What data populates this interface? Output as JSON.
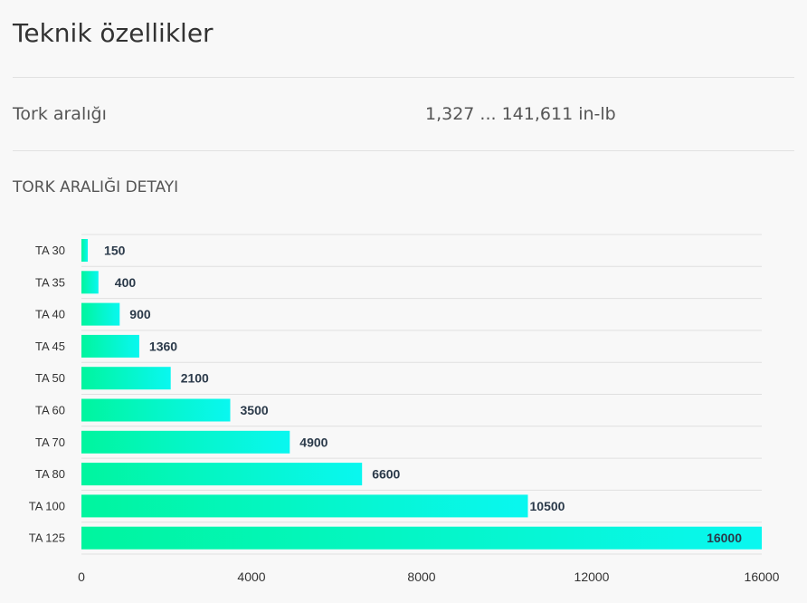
{
  "page": {
    "title": "Teknik özellikler"
  },
  "specs": {
    "torque_range_label": "Tork aralığı",
    "torque_range_value": "1,327 ... 141,611 in-lb"
  },
  "detail": {
    "title": "TORK ARALIĞI DETAYI"
  },
  "colors": {
    "bar_start": "#00f59e",
    "bar_end": "#09f7f0",
    "gridline": "#e0e0e0",
    "value_text": "#2b3a4a"
  },
  "chart_data": {
    "type": "bar",
    "orientation": "horizontal",
    "categories": [
      "TA 30",
      "TA 35",
      "TA 40",
      "TA 45",
      "TA 50",
      "TA 60",
      "TA 70",
      "TA 80",
      "TA 100",
      "TA 125"
    ],
    "values": [
      150,
      400,
      900,
      1360,
      2100,
      3500,
      4900,
      6600,
      10500,
      16000
    ],
    "value_labels": [
      "150",
      "400",
      "900",
      "1360",
      "2100",
      "3500",
      "4900",
      "6600",
      "10500",
      "16000"
    ],
    "xlim": [
      0,
      16000
    ],
    "x_ticks": [
      0,
      4000,
      8000,
      12000,
      16000
    ],
    "x_tick_labels": [
      "0",
      "4000",
      "8000",
      "12000",
      "16000"
    ],
    "grid": true
  }
}
